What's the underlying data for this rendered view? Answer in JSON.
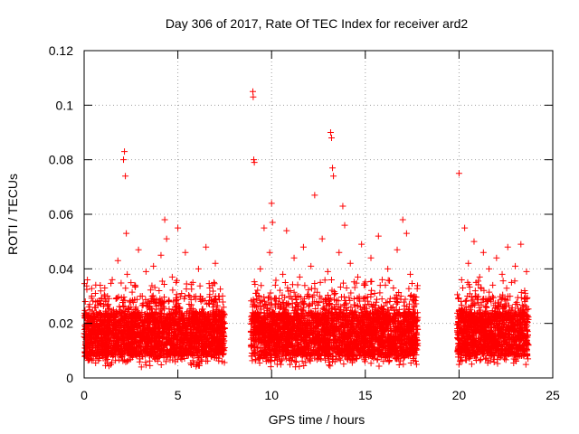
{
  "chart_data": {
    "type": "scatter",
    "title": "Day 306 of 2017, Rate Of TEC Index for receiver ard2",
    "xlabel": "GPS time / hours",
    "ylabel": "ROTI / TECUs",
    "xlim": [
      0,
      25
    ],
    "ylim": [
      0,
      0.12
    ],
    "x_ticks": [
      0,
      5,
      10,
      15,
      20,
      25
    ],
    "y_ticks": [
      0,
      0.02,
      0.04,
      0.06,
      0.08,
      0.1,
      0.12
    ],
    "x_tick_labels": [
      "0",
      "5",
      "10",
      "15",
      "20",
      "25"
    ],
    "y_tick_labels": [
      "0",
      "0.02",
      "0.04",
      "0.06",
      "0.08",
      "0.1",
      "0.12"
    ],
    "grid": true,
    "marker": "+",
    "color": "#ff0000",
    "data_coverage_hours": [
      [
        0,
        7.5
      ],
      [
        8.9,
        17.8
      ],
      [
        19.9,
        23.7
      ]
    ],
    "series": [
      {
        "points": [
          [
            0.1,
            0.012
          ],
          [
            0.2,
            0.018
          ],
          [
            0.3,
            0.025
          ],
          [
            0.35,
            0.008
          ],
          [
            0.4,
            0.021
          ],
          [
            0.5,
            0.015
          ],
          [
            0.6,
            0.031
          ],
          [
            0.7,
            0.01
          ],
          [
            0.8,
            0.019
          ],
          [
            0.9,
            0.027
          ],
          [
            1.0,
            0.014
          ],
          [
            1.1,
            0.033
          ],
          [
            1.2,
            0.009
          ],
          [
            1.3,
            0.022
          ],
          [
            1.4,
            0.017
          ],
          [
            1.5,
            0.036
          ],
          [
            1.6,
            0.011
          ],
          [
            1.7,
            0.029
          ],
          [
            1.8,
            0.043
          ],
          [
            1.9,
            0.024
          ],
          [
            2.0,
            0.016
          ],
          [
            2.1,
            0.08
          ],
          [
            2.15,
            0.083
          ],
          [
            2.2,
            0.074
          ],
          [
            2.25,
            0.053
          ],
          [
            2.3,
            0.038
          ],
          [
            2.4,
            0.013
          ],
          [
            2.5,
            0.026
          ],
          [
            2.6,
            0.019
          ],
          [
            2.7,
            0.034
          ],
          [
            2.8,
            0.009
          ],
          [
            2.9,
            0.047
          ],
          [
            3.0,
            0.021
          ],
          [
            3.1,
            0.03
          ],
          [
            3.2,
            0.014
          ],
          [
            3.3,
            0.039
          ],
          [
            3.4,
            0.018
          ],
          [
            3.5,
            0.025
          ],
          [
            3.6,
            0.011
          ],
          [
            3.7,
            0.041
          ],
          [
            3.8,
            0.023
          ],
          [
            3.9,
            0.016
          ],
          [
            4.0,
            0.032
          ],
          [
            4.1,
            0.045
          ],
          [
            4.2,
            0.02
          ],
          [
            4.3,
            0.058
          ],
          [
            4.4,
            0.051
          ],
          [
            4.5,
            0.028
          ],
          [
            4.6,
            0.012
          ],
          [
            4.7,
            0.037
          ],
          [
            4.8,
            0.019
          ],
          [
            4.9,
            0.026
          ],
          [
            5.0,
            0.055
          ],
          [
            5.1,
            0.015
          ],
          [
            5.2,
            0.031
          ],
          [
            5.3,
            0.022
          ],
          [
            5.4,
            0.046
          ],
          [
            5.5,
            0.01
          ],
          [
            5.6,
            0.027
          ],
          [
            5.7,
            0.018
          ],
          [
            5.8,
            0.035
          ],
          [
            5.9,
            0.013
          ],
          [
            6.0,
            0.024
          ],
          [
            6.1,
            0.04
          ],
          [
            6.2,
            0.017
          ],
          [
            6.3,
            0.029
          ],
          [
            6.4,
            0.011
          ],
          [
            6.5,
            0.048
          ],
          [
            6.6,
            0.021
          ],
          [
            6.7,
            0.033
          ],
          [
            6.8,
            0.008
          ],
          [
            6.9,
            0.026
          ],
          [
            7.0,
            0.042
          ],
          [
            7.1,
            0.015
          ],
          [
            7.2,
            0.03
          ],
          [
            7.3,
            0.019
          ],
          [
            7.4,
            0.023
          ],
          [
            9.0,
            0.105
          ],
          [
            9.02,
            0.103
          ],
          [
            9.05,
            0.08
          ],
          [
            9.08,
            0.079
          ],
          [
            9.1,
            0.022
          ],
          [
            9.2,
            0.031
          ],
          [
            9.3,
            0.014
          ],
          [
            9.4,
            0.04
          ],
          [
            9.5,
            0.018
          ],
          [
            9.6,
            0.055
          ],
          [
            9.7,
            0.027
          ],
          [
            9.8,
            0.012
          ],
          [
            9.9,
            0.046
          ],
          [
            10.0,
            0.064
          ],
          [
            10.05,
            0.057
          ],
          [
            10.1,
            0.02
          ],
          [
            10.2,
            0.034
          ],
          [
            10.3,
            0.005
          ],
          [
            10.4,
            0.029
          ],
          [
            10.5,
            0.016
          ],
          [
            10.6,
            0.038
          ],
          [
            10.7,
            0.023
          ],
          [
            10.8,
            0.054
          ],
          [
            10.9,
            0.011
          ],
          [
            11.0,
            0.032
          ],
          [
            11.1,
            0.019
          ],
          [
            11.2,
            0.044
          ],
          [
            11.3,
            0.026
          ],
          [
            11.4,
            0.013
          ],
          [
            11.5,
            0.037
          ],
          [
            11.6,
            0.021
          ],
          [
            11.7,
            0.048
          ],
          [
            11.8,
            0.015
          ],
          [
            11.9,
            0.03
          ],
          [
            12.0,
            0.024
          ],
          [
            12.1,
            0.041
          ],
          [
            12.2,
            0.009
          ],
          [
            12.3,
            0.067
          ],
          [
            12.4,
            0.028
          ],
          [
            12.5,
            0.018
          ],
          [
            12.6,
            0.035
          ],
          [
            12.7,
            0.051
          ],
          [
            12.8,
            0.022
          ],
          [
            12.9,
            0.014
          ],
          [
            13.0,
            0.039
          ],
          [
            13.1,
            0.027
          ],
          [
            13.15,
            0.09
          ],
          [
            13.2,
            0.088
          ],
          [
            13.25,
            0.077
          ],
          [
            13.3,
            0.074
          ],
          [
            13.4,
            0.031
          ],
          [
            13.5,
            0.017
          ],
          [
            13.6,
            0.046
          ],
          [
            13.7,
            0.025
          ],
          [
            13.8,
            0.063
          ],
          [
            13.9,
            0.056
          ],
          [
            14.0,
            0.033
          ],
          [
            14.1,
            0.012
          ],
          [
            14.2,
            0.042
          ],
          [
            14.3,
            0.02
          ],
          [
            14.4,
            0.029
          ],
          [
            14.5,
            0.015
          ],
          [
            14.6,
            0.037
          ],
          [
            14.7,
            0.023
          ],
          [
            14.8,
            0.049
          ],
          [
            14.9,
            0.01
          ],
          [
            15.0,
            0.034
          ],
          [
            15.1,
            0.019
          ],
          [
            15.2,
            0.027
          ],
          [
            15.3,
            0.044
          ],
          [
            15.4,
            0.016
          ],
          [
            15.5,
            0.031
          ],
          [
            15.6,
            0.022
          ],
          [
            15.7,
            0.052
          ],
          [
            15.8,
            0.013
          ],
          [
            15.9,
            0.036
          ],
          [
            16.0,
            0.025
          ],
          [
            16.1,
            0.018
          ],
          [
            16.2,
            0.04
          ],
          [
            16.3,
            0.028
          ],
          [
            16.4,
            0.011
          ],
          [
            16.5,
            0.033
          ],
          [
            16.6,
            0.021
          ],
          [
            16.7,
            0.047
          ],
          [
            16.8,
            0.015
          ],
          [
            16.9,
            0.03
          ],
          [
            17.0,
            0.058
          ],
          [
            17.1,
            0.024
          ],
          [
            17.2,
            0.053
          ],
          [
            17.3,
            0.017
          ],
          [
            17.4,
            0.038
          ],
          [
            17.5,
            0.012
          ],
          [
            17.6,
            0.026
          ],
          [
            17.7,
            0.019
          ],
          [
            20.0,
            0.075
          ],
          [
            20.1,
            0.021
          ],
          [
            20.2,
            0.033
          ],
          [
            20.3,
            0.055
          ],
          [
            20.4,
            0.016
          ],
          [
            20.5,
            0.042
          ],
          [
            20.6,
            0.025
          ],
          [
            20.7,
            0.012
          ],
          [
            20.8,
            0.05
          ],
          [
            20.9,
            0.03
          ],
          [
            21.0,
            0.019
          ],
          [
            21.1,
            0.037
          ],
          [
            21.2,
            0.023
          ],
          [
            21.3,
            0.046
          ],
          [
            21.4,
            0.014
          ],
          [
            21.5,
            0.028
          ],
          [
            21.6,
            0.04
          ],
          [
            21.7,
            0.011
          ],
          [
            21.8,
            0.034
          ],
          [
            21.9,
            0.02
          ],
          [
            22.0,
            0.044
          ],
          [
            22.1,
            0.026
          ],
          [
            22.2,
            0.017
          ],
          [
            22.3,
            0.038
          ],
          [
            22.4,
            0.029
          ],
          [
            22.5,
            0.013
          ],
          [
            22.6,
            0.048
          ],
          [
            22.7,
            0.022
          ],
          [
            22.8,
            0.035
          ],
          [
            22.9,
            0.016
          ],
          [
            23.0,
            0.041
          ],
          [
            23.1,
            0.027
          ],
          [
            23.2,
            0.018
          ],
          [
            23.3,
            0.049
          ],
          [
            23.4,
            0.024
          ],
          [
            23.5,
            0.032
          ],
          [
            23.6,
            0.039
          ],
          [
            23.7,
            0.012
          ]
        ]
      }
    ]
  }
}
